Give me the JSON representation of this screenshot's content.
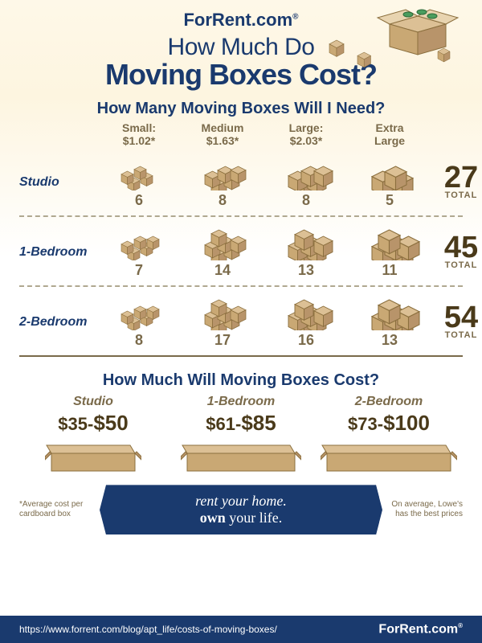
{
  "brand": {
    "name": "ForRent",
    "suffix": ".com",
    "reg": "®"
  },
  "title": {
    "line1": "How Much Do",
    "line2": "Moving Boxes Cost?"
  },
  "section1": {
    "heading": "How Many Moving Boxes Will I Need?",
    "columns": [
      {
        "name": "Small:",
        "price": "$1.02*"
      },
      {
        "name": "Medium",
        "price": "$1.63*"
      },
      {
        "name": "Large:",
        "price": "$2.03*"
      },
      {
        "name": "Extra",
        "price": "Large"
      }
    ],
    "rows": [
      {
        "label": "Studio",
        "counts": [
          6,
          8,
          8,
          5
        ],
        "total": 27
      },
      {
        "label": "1-Bedroom",
        "counts": [
          7,
          14,
          13,
          11
        ],
        "total": 45
      },
      {
        "label": "2-Bedroom",
        "counts": [
          8,
          17,
          16,
          13
        ],
        "total": 54
      }
    ],
    "totalLabel": "TOTAL"
  },
  "section2": {
    "heading": "How Much Will Moving Boxes Cost?",
    "items": [
      {
        "label": "Studio",
        "low": "$35",
        "high": "$50"
      },
      {
        "label": "1-Bedroom",
        "low": "$61",
        "high": "$85"
      },
      {
        "label": "2-Bedroom",
        "low": "$73",
        "high": "$100"
      }
    ]
  },
  "footnoteLeft": "*Average cost per cardboard box",
  "footnoteRight": "On average, Lowe's has the best prices",
  "banner": {
    "l1": "rent",
    "l2": "your home.",
    "l3": "own",
    "l4": "your life."
  },
  "footer": {
    "url": "https://www.forrent.com/blog/apt_life/costs-of-moving-boxes/"
  },
  "style": {
    "boxFill": "#c9a874",
    "boxStroke": "#8b6f3e",
    "boxTop": "#dcc095",
    "navy": "#1a3a6e",
    "brown": "#7a6a4a",
    "darkBrown": "#4a3a1a"
  }
}
